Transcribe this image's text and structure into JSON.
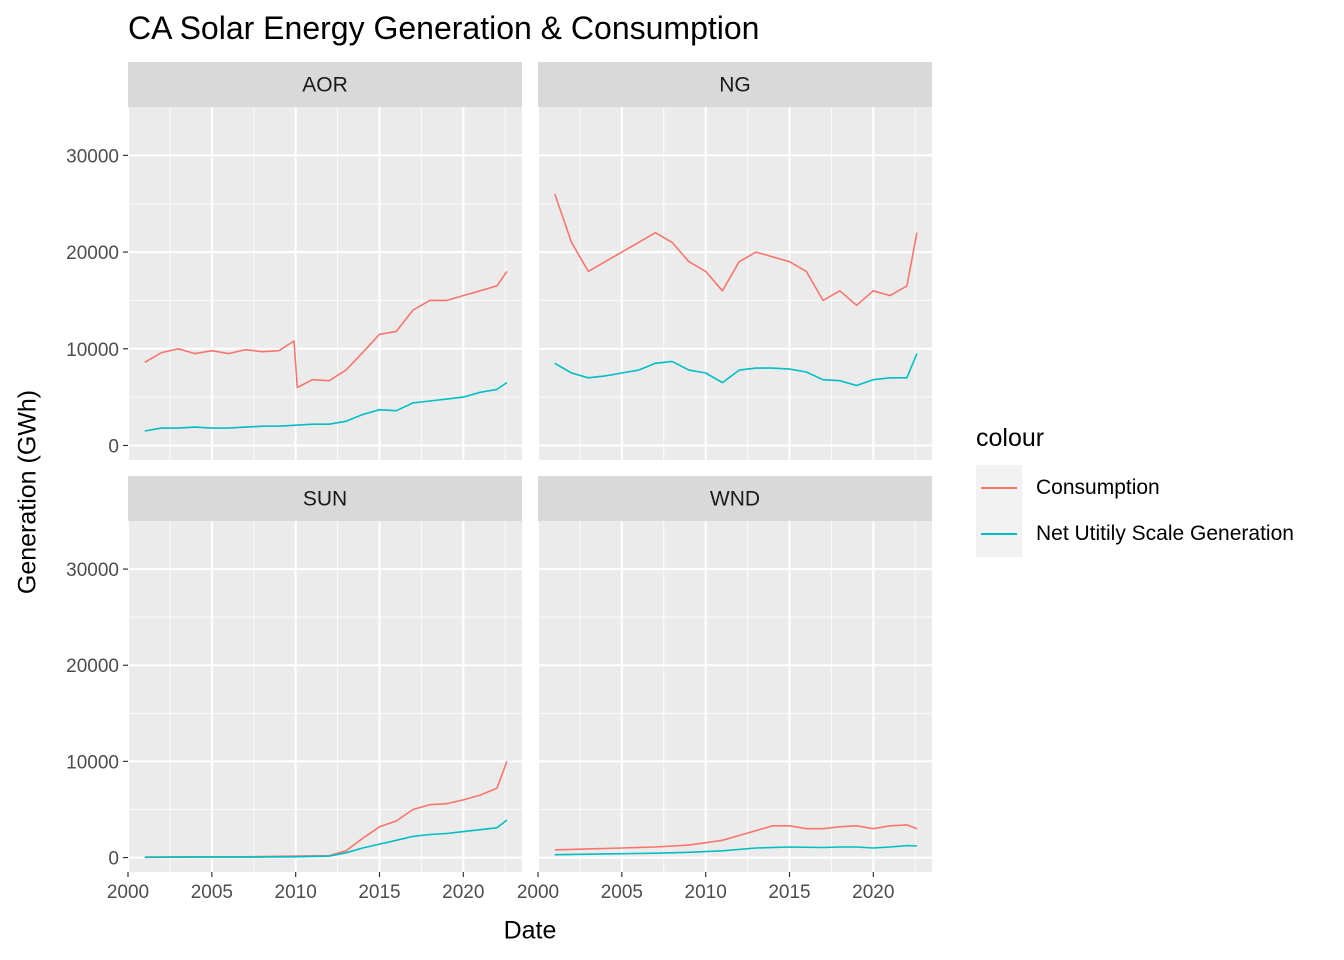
{
  "title": "CA Solar Energy Generation & Consumption",
  "colors": {
    "panel_bg": "#ebebeb",
    "strip_bg": "#d9d9d9",
    "grid": "#ffffff",
    "consumption": "#F8766D",
    "generation": "#00BFC4"
  },
  "chart_data": {
    "type": "line",
    "title": "CA Solar Energy Generation & Consumption",
    "xlabel": "Date",
    "ylabel": "Generation (GWh)",
    "xlim": [
      2000,
      2023.5
    ],
    "ylim": [
      -1500,
      35000
    ],
    "x_ticks": [
      2000,
      2005,
      2010,
      2015,
      2020
    ],
    "y_ticks": [
      0,
      10000,
      20000,
      30000
    ],
    "grid": true,
    "legend": {
      "title": "colour",
      "position": "right",
      "entries": [
        "Consumption",
        "Net Utitily Scale Generation"
      ]
    },
    "facets": [
      {
        "label": "AOR",
        "series": [
          {
            "name": "Consumption",
            "points": [
              [
                2001.0,
                8600
              ],
              [
                2002.0,
                9600
              ],
              [
                2003.0,
                10000
              ],
              [
                2004.0,
                9500
              ],
              [
                2005.0,
                9800
              ],
              [
                2006.0,
                9500
              ],
              [
                2007.0,
                9900
              ],
              [
                2008.0,
                9700
              ],
              [
                2009.0,
                9800
              ],
              [
                2009.9,
                10800
              ],
              [
                2010.1,
                6000
              ],
              [
                2011.0,
                6800
              ],
              [
                2012.0,
                6700
              ],
              [
                2013.0,
                7800
              ],
              [
                2014.0,
                9600
              ],
              [
                2015.0,
                11500
              ],
              [
                2016.0,
                11800
              ],
              [
                2017.0,
                14000
              ],
              [
                2018.0,
                15000
              ],
              [
                2019.0,
                15000
              ],
              [
                2020.0,
                15500
              ],
              [
                2021.0,
                16000
              ],
              [
                2022.0,
                16500
              ],
              [
                2022.6,
                18000
              ]
            ]
          },
          {
            "name": "Net Utitily Scale Generation",
            "points": [
              [
                2001.0,
                1500
              ],
              [
                2002.0,
                1800
              ],
              [
                2003.0,
                1800
              ],
              [
                2004.0,
                1900
              ],
              [
                2005.0,
                1800
              ],
              [
                2006.0,
                1800
              ],
              [
                2007.0,
                1900
              ],
              [
                2008.0,
                2000
              ],
              [
                2009.0,
                2000
              ],
              [
                2010.0,
                2100
              ],
              [
                2011.0,
                2200
              ],
              [
                2012.0,
                2200
              ],
              [
                2013.0,
                2500
              ],
              [
                2014.0,
                3200
              ],
              [
                2015.0,
                3700
              ],
              [
                2016.0,
                3600
              ],
              [
                2017.0,
                4400
              ],
              [
                2018.0,
                4600
              ],
              [
                2019.0,
                4800
              ],
              [
                2020.0,
                5000
              ],
              [
                2021.0,
                5500
              ],
              [
                2022.0,
                5800
              ],
              [
                2022.6,
                6500
              ]
            ]
          }
        ]
      },
      {
        "label": "NG",
        "series": [
          {
            "name": "Consumption",
            "points": [
              [
                2001.0,
                26000
              ],
              [
                2002.0,
                21000
              ],
              [
                2003.0,
                18000
              ],
              [
                2004.0,
                19000
              ],
              [
                2005.0,
                20000
              ],
              [
                2006.0,
                21000
              ],
              [
                2007.0,
                22000
              ],
              [
                2008.0,
                21000
              ],
              [
                2009.0,
                19000
              ],
              [
                2010.0,
                18000
              ],
              [
                2011.0,
                16000
              ],
              [
                2012.0,
                19000
              ],
              [
                2013.0,
                20000
              ],
              [
                2014.0,
                19500
              ],
              [
                2015.0,
                19000
              ],
              [
                2016.0,
                18000
              ],
              [
                2017.0,
                15000
              ],
              [
                2018.0,
                16000
              ],
              [
                2019.0,
                14500
              ],
              [
                2020.0,
                16000
              ],
              [
                2021.0,
                15500
              ],
              [
                2022.0,
                16500
              ],
              [
                2022.6,
                22000
              ]
            ]
          },
          {
            "name": "Net Utitily Scale Generation",
            "points": [
              [
                2001.0,
                8500
              ],
              [
                2002.0,
                7500
              ],
              [
                2003.0,
                7000
              ],
              [
                2004.0,
                7200
              ],
              [
                2005.0,
                7500
              ],
              [
                2006.0,
                7800
              ],
              [
                2007.0,
                8500
              ],
              [
                2008.0,
                8700
              ],
              [
                2009.0,
                7800
              ],
              [
                2010.0,
                7500
              ],
              [
                2011.0,
                6500
              ],
              [
                2012.0,
                7800
              ],
              [
                2013.0,
                8000
              ],
              [
                2014.0,
                8000
              ],
              [
                2015.0,
                7900
              ],
              [
                2016.0,
                7600
              ],
              [
                2017.0,
                6800
              ],
              [
                2018.0,
                6700
              ],
              [
                2019.0,
                6200
              ],
              [
                2020.0,
                6800
              ],
              [
                2021.0,
                7000
              ],
              [
                2022.0,
                7000
              ],
              [
                2022.6,
                9500
              ]
            ]
          }
        ]
      },
      {
        "label": "SUN",
        "series": [
          {
            "name": "Consumption",
            "points": [
              [
                2001.0,
                50
              ],
              [
                2004.0,
                80
              ],
              [
                2007.0,
                80
              ],
              [
                2010.0,
                150
              ],
              [
                2012.0,
                200
              ],
              [
                2013.0,
                700
              ],
              [
                2014.0,
                2000
              ],
              [
                2015.0,
                3200
              ],
              [
                2016.0,
                3800
              ],
              [
                2017.0,
                5000
              ],
              [
                2018.0,
                5500
              ],
              [
                2019.0,
                5600
              ],
              [
                2020.0,
                6000
              ],
              [
                2021.0,
                6500
              ],
              [
                2022.0,
                7200
              ],
              [
                2022.6,
                10000
              ]
            ]
          },
          {
            "name": "Net Utitily Scale Generation",
            "points": [
              [
                2001.0,
                30
              ],
              [
                2004.0,
                50
              ],
              [
                2007.0,
                50
              ],
              [
                2010.0,
                80
              ],
              [
                2012.0,
                150
              ],
              [
                2013.0,
                500
              ],
              [
                2014.0,
                1000
              ],
              [
                2015.0,
                1400
              ],
              [
                2016.0,
                1800
              ],
              [
                2017.0,
                2200
              ],
              [
                2018.0,
                2400
              ],
              [
                2019.0,
                2500
              ],
              [
                2020.0,
                2700
              ],
              [
                2021.0,
                2900
              ],
              [
                2022.0,
                3100
              ],
              [
                2022.6,
                3900
              ]
            ]
          }
        ]
      },
      {
        "label": "WND",
        "series": [
          {
            "name": "Consumption",
            "points": [
              [
                2001.0,
                800
              ],
              [
                2003.0,
                900
              ],
              [
                2005.0,
                1000
              ],
              [
                2007.0,
                1100
              ],
              [
                2009.0,
                1300
              ],
              [
                2011.0,
                1800
              ],
              [
                2013.0,
                2800
              ],
              [
                2014.0,
                3300
              ],
              [
                2015.0,
                3300
              ],
              [
                2016.0,
                3000
              ],
              [
                2017.0,
                3000
              ],
              [
                2018.0,
                3200
              ],
              [
                2019.0,
                3300
              ],
              [
                2020.0,
                3000
              ],
              [
                2021.0,
                3300
              ],
              [
                2022.0,
                3400
              ],
              [
                2022.6,
                3000
              ]
            ]
          },
          {
            "name": "Net Utitily Scale Generation",
            "points": [
              [
                2001.0,
                300
              ],
              [
                2003.0,
                350
              ],
              [
                2005.0,
                400
              ],
              [
                2007.0,
                450
              ],
              [
                2009.0,
                550
              ],
              [
                2011.0,
                700
              ],
              [
                2013.0,
                1000
              ],
              [
                2015.0,
                1100
              ],
              [
                2017.0,
                1050
              ],
              [
                2018.0,
                1100
              ],
              [
                2019.0,
                1100
              ],
              [
                2020.0,
                1000
              ],
              [
                2021.0,
                1100
              ],
              [
                2022.0,
                1250
              ],
              [
                2022.6,
                1200
              ]
            ]
          }
        ]
      }
    ]
  }
}
